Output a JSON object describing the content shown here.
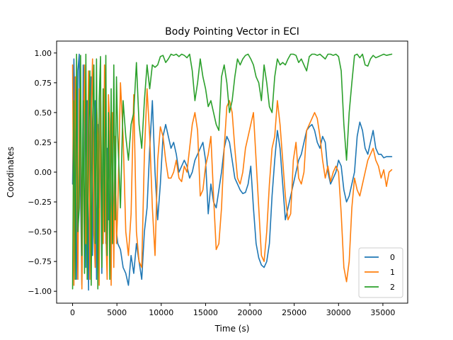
{
  "chart_data": {
    "type": "line",
    "title": "Body Pointing Vector in ECI",
    "xlabel": "Time (s)",
    "ylabel": "Coordinates",
    "xlim": [
      -1800,
      37800
    ],
    "ylim": [
      -1.1,
      1.1
    ],
    "xticks": [
      0,
      5000,
      10000,
      15000,
      20000,
      25000,
      30000,
      35000
    ],
    "xtick_labels": [
      "0",
      "5000",
      "10000",
      "15000",
      "20000",
      "25000",
      "30000",
      "35000"
    ],
    "yticks": [
      -1.0,
      -0.75,
      -0.5,
      -0.25,
      0.0,
      0.25,
      0.5,
      0.75,
      1.0
    ],
    "ytick_labels": [
      "−1.00",
      "−0.75",
      "−0.50",
      "−0.25",
      "0.00",
      "0.25",
      "0.50",
      "0.75",
      "1.00"
    ],
    "grid": false,
    "legend_position": "lower-right",
    "series": [
      {
        "name": "0",
        "color": "#1f77b4",
        "x": [
          0,
          150,
          300,
          450,
          600,
          750,
          900,
          1050,
          1200,
          1350,
          1500,
          1650,
          1800,
          1950,
          2100,
          2250,
          2400,
          2550,
          2700,
          2850,
          3000,
          3150,
          3300,
          3450,
          3600,
          3750,
          3900,
          4050,
          4200,
          4350,
          4500,
          4650,
          4800,
          4950,
          5100,
          5400,
          5700,
          6000,
          6300,
          6600,
          6900,
          7200,
          7500,
          7800,
          8100,
          8400,
          8700,
          9000,
          9300,
          9600,
          9900,
          10200,
          10500,
          10800,
          11100,
          11400,
          11700,
          12000,
          12300,
          12600,
          12900,
          13200,
          13500,
          13800,
          14100,
          14400,
          14700,
          15000,
          15300,
          15600,
          15900,
          16200,
          16500,
          16800,
          17100,
          17400,
          17700,
          18000,
          18300,
          18600,
          18900,
          19200,
          19500,
          19800,
          20100,
          20400,
          20700,
          21000,
          21300,
          21600,
          21900,
          22200,
          22500,
          22800,
          23100,
          23400,
          23700,
          24000,
          24300,
          24600,
          24900,
          25200,
          25500,
          25800,
          26100,
          26400,
          26700,
          27000,
          27300,
          27600,
          27900,
          28200,
          28500,
          28800,
          29100,
          29400,
          29700,
          30000,
          30300,
          30600,
          30900,
          31200,
          31500,
          31800,
          32100,
          32400,
          32700,
          33000,
          33300,
          33600,
          33900,
          34200,
          34500,
          34800,
          35100,
          35400,
          35700,
          36000
        ],
        "y": [
          -0.1,
          0.95,
          0.3,
          -0.9,
          0.85,
          0.99,
          -0.2,
          -0.95,
          0.9,
          0.5,
          -0.8,
          0.6,
          -0.99,
          0.2,
          0.8,
          -0.7,
          0.3,
          0.6,
          -0.9,
          0.4,
          -0.3,
          0.5,
          -0.85,
          0.1,
          0.4,
          -0.6,
          0.2,
          -0.4,
          0.35,
          -0.75,
          0.3,
          -0.6,
          0.2,
          -0.5,
          -0.6,
          -0.65,
          -0.8,
          -0.85,
          -0.95,
          -0.7,
          -0.85,
          -0.6,
          -0.75,
          -0.9,
          -0.5,
          -0.3,
          0.2,
          0.6,
          0.0,
          -0.4,
          -0.1,
          0.3,
          0.4,
          0.3,
          0.2,
          0.25,
          0.15,
          0.0,
          0.05,
          0.1,
          0.05,
          -0.05,
          0.0,
          0.1,
          0.15,
          0.2,
          0.25,
          0.1,
          -0.35,
          -0.1,
          -0.25,
          -0.3,
          -0.15,
          0.0,
          0.2,
          0.3,
          0.25,
          0.1,
          -0.05,
          -0.1,
          -0.15,
          -0.18,
          -0.17,
          -0.1,
          0.05,
          -0.3,
          -0.6,
          -0.72,
          -0.78,
          -0.8,
          -0.75,
          -0.6,
          -0.2,
          0.1,
          0.35,
          0.2,
          -0.1,
          -0.4,
          -0.3,
          -0.2,
          -0.1,
          0.0,
          0.1,
          0.15,
          0.25,
          0.35,
          0.38,
          0.4,
          0.35,
          0.25,
          0.2,
          0.3,
          0.25,
          0.0,
          -0.1,
          -0.05,
          0.0,
          0.1,
          0.05,
          -0.15,
          -0.25,
          -0.2,
          -0.1,
          0.0,
          0.3,
          0.42,
          0.35,
          0.2,
          0.15,
          0.25,
          0.35,
          0.2,
          0.15,
          0.15,
          0.12,
          0.13,
          0.13,
          0.13
        ]
      },
      {
        "name": "1",
        "color": "#ff7f0e",
        "x": [
          0,
          150,
          300,
          450,
          600,
          750,
          900,
          1050,
          1200,
          1350,
          1500,
          1650,
          1800,
          1950,
          2100,
          2250,
          2400,
          2550,
          2700,
          2850,
          3000,
          3150,
          3300,
          3450,
          3600,
          3750,
          3900,
          4050,
          4200,
          4350,
          4500,
          4650,
          4800,
          4950,
          5100,
          5400,
          5700,
          6000,
          6300,
          6600,
          6900,
          7200,
          7500,
          7800,
          8100,
          8400,
          8700,
          9000,
          9300,
          9600,
          9900,
          10200,
          10500,
          10800,
          11100,
          11400,
          11700,
          12000,
          12300,
          12600,
          12900,
          13200,
          13500,
          13800,
          14100,
          14400,
          14700,
          15000,
          15300,
          15600,
          15900,
          16200,
          16500,
          16800,
          17100,
          17400,
          17700,
          18000,
          18300,
          18600,
          18900,
          19200,
          19500,
          19800,
          20100,
          20400,
          20700,
          21000,
          21300,
          21600,
          21900,
          22200,
          22500,
          22800,
          23100,
          23400,
          23700,
          24000,
          24300,
          24600,
          24900,
          25200,
          25500,
          25800,
          26100,
          26400,
          26700,
          27000,
          27300,
          27600,
          27900,
          28200,
          28500,
          28800,
          29100,
          29400,
          29700,
          30000,
          30300,
          30600,
          30900,
          31200,
          31500,
          31800,
          32100,
          32400,
          32700,
          33000,
          33300,
          33600,
          33900,
          34200,
          34500,
          34800,
          35100,
          35400,
          35700,
          36000
        ],
        "y": [
          0.9,
          -0.95,
          0.8,
          0.2,
          -0.9,
          0.7,
          0.4,
          -0.98,
          0.3,
          0.9,
          -0.6,
          -0.4,
          0.85,
          -0.9,
          0.5,
          0.95,
          -0.5,
          -0.8,
          0.6,
          0.3,
          -0.95,
          0.7,
          -0.2,
          -0.6,
          0.9,
          -0.5,
          -0.9,
          0.65,
          0.4,
          -0.95,
          0.5,
          -0.8,
          0.3,
          -0.6,
          -0.3,
          0.75,
          0.3,
          -0.5,
          -0.7,
          -0.35,
          0.65,
          -0.5,
          -0.75,
          -0.8,
          0.15,
          0.7,
          0.3,
          -0.3,
          -0.7,
          0.1,
          0.38,
          0.3,
          0.1,
          -0.05,
          -0.05,
          0.0,
          0.1,
          -0.05,
          -0.08,
          0.05,
          0.0,
          0.2,
          0.4,
          0.5,
          0.35,
          -0.2,
          -0.15,
          0.05,
          0.15,
          0.3,
          -0.2,
          -0.65,
          -0.6,
          -0.3,
          0.2,
          0.55,
          0.6,
          0.5,
          0.2,
          -0.05,
          -0.1,
          0.0,
          0.2,
          0.3,
          0.4,
          0.5,
          0.1,
          -0.3,
          -0.7,
          -0.75,
          -0.5,
          -0.1,
          0.2,
          0.3,
          0.6,
          0.4,
          0.1,
          -0.2,
          -0.4,
          -0.35,
          0.1,
          0.25,
          -0.05,
          -0.1,
          0.0,
          0.35,
          0.4,
          0.45,
          0.5,
          0.45,
          0.3,
          0.1,
          -0.05,
          0.05,
          -0.08,
          0.0,
          0.05,
          0.0,
          -0.35,
          -0.8,
          -0.92,
          -0.75,
          -0.3,
          -0.05,
          -0.15,
          -0.2,
          -0.1,
          0.0,
          0.1,
          0.15,
          0.2,
          0.1,
          0.05,
          -0.05,
          0.02,
          -0.12,
          0.0,
          0.02
        ]
      },
      {
        "name": "2",
        "color": "#2ca02c",
        "x": [
          0,
          150,
          300,
          450,
          600,
          750,
          900,
          1050,
          1200,
          1350,
          1500,
          1650,
          1800,
          1950,
          2100,
          2250,
          2400,
          2550,
          2700,
          2850,
          3000,
          3150,
          3300,
          3450,
          3600,
          3750,
          3900,
          4050,
          4200,
          4350,
          4500,
          4650,
          4800,
          4950,
          5100,
          5400,
          5700,
          6000,
          6300,
          6600,
          6900,
          7200,
          7500,
          7800,
          8100,
          8400,
          8700,
          9000,
          9300,
          9600,
          9900,
          10200,
          10500,
          10800,
          11100,
          11400,
          11700,
          12000,
          12300,
          12600,
          12900,
          13200,
          13500,
          13800,
          14100,
          14400,
          14700,
          15000,
          15300,
          15600,
          15900,
          16200,
          16500,
          16800,
          17100,
          17400,
          17700,
          18000,
          18300,
          18600,
          18900,
          19200,
          19500,
          19800,
          20100,
          20400,
          20700,
          21000,
          21300,
          21600,
          21900,
          22200,
          22500,
          22800,
          23100,
          23400,
          23700,
          24000,
          24300,
          24600,
          24900,
          25200,
          25500,
          25800,
          26100,
          26400,
          26700,
          27000,
          27300,
          27600,
          27900,
          28200,
          28500,
          28800,
          29100,
          29400,
          29700,
          30000,
          30300,
          30600,
          30900,
          31200,
          31500,
          31800,
          32100,
          32400,
          32700,
          33000,
          33300,
          33600,
          33900,
          34200,
          34500,
          34800,
          35100,
          35400,
          35700,
          36000
        ],
        "y": [
          -0.98,
          0.6,
          -0.9,
          0.99,
          -0.5,
          -0.3,
          0.98,
          -0.7,
          0.6,
          -0.85,
          0.99,
          -0.9,
          0.3,
          0.85,
          -0.95,
          0.4,
          0.9,
          -0.6,
          0.95,
          -0.98,
          0.6,
          0.97,
          -0.8,
          0.7,
          -0.5,
          0.98,
          -0.7,
          0.5,
          -0.9,
          0.7,
          -0.6,
          0.9,
          -0.4,
          0.8,
          0.3,
          -0.3,
          0.6,
          0.3,
          0.1,
          0.4,
          0.5,
          0.92,
          0.4,
          0.2,
          0.6,
          0.9,
          0.7,
          0.9,
          0.88,
          0.9,
          0.97,
          0.98,
          0.92,
          0.95,
          0.99,
          0.98,
          0.99,
          0.97,
          0.99,
          0.98,
          0.96,
          0.99,
          0.85,
          0.6,
          0.75,
          0.95,
          0.8,
          0.7,
          0.55,
          0.6,
          0.5,
          0.4,
          0.35,
          0.8,
          0.9,
          0.75,
          0.5,
          0.6,
          0.8,
          0.95,
          0.9,
          0.95,
          0.98,
          0.99,
          0.95,
          0.9,
          0.8,
          0.75,
          0.6,
          0.9,
          0.75,
          0.55,
          0.5,
          0.8,
          0.95,
          0.9,
          0.92,
          0.9,
          0.95,
          0.99,
          0.99,
          0.98,
          0.92,
          0.95,
          0.9,
          0.85,
          0.97,
          0.99,
          0.99,
          0.98,
          0.99,
          0.97,
          0.95,
          0.99,
          0.99,
          0.98,
          0.99,
          0.97,
          0.85,
          0.4,
          0.1,
          0.5,
          0.75,
          0.98,
          0.99,
          0.96,
          0.99,
          0.9,
          0.89,
          0.95,
          0.98,
          0.96,
          0.97,
          0.98,
          0.99,
          0.98,
          0.985,
          0.99
        ]
      }
    ]
  }
}
